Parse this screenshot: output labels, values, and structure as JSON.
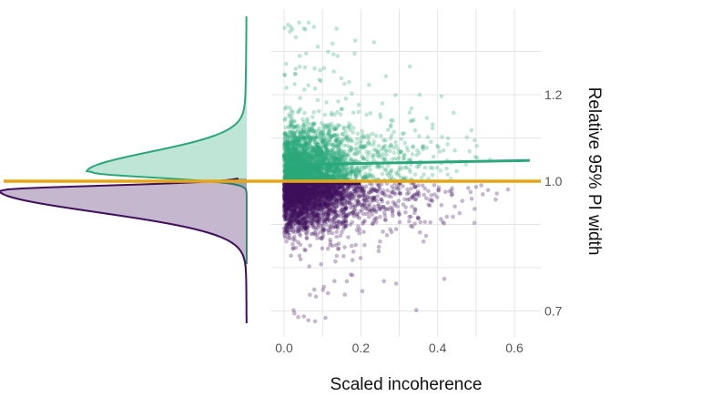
{
  "chart_data": {
    "type": "scatter",
    "title": "",
    "xlabel": "Scaled incoherence",
    "ylabel": "Relative 95% PI width",
    "xlim": [
      -0.02,
      0.66
    ],
    "ylim": [
      0.67,
      1.38
    ],
    "x_ticks": [
      0.0,
      0.2,
      0.4,
      0.6
    ],
    "x_tick_labels": [
      "0.0",
      "0.2",
      "0.4",
      "0.6"
    ],
    "y_ticks": [
      0.7,
      1.0,
      1.2
    ],
    "y_tick_labels": [
      "0.7",
      "1.0",
      "1.2"
    ],
    "reference_line": {
      "y": 1.0,
      "color": "#e6a614"
    },
    "series": [
      {
        "name": "above_reference",
        "color": "#2aa87c",
        "y_range": [
          1.0,
          1.37
        ],
        "x_range": [
          0.0,
          0.63
        ],
        "trend": {
          "x": [
            0.0,
            0.64
          ],
          "y": [
            1.0,
            1.05
          ]
        },
        "density_peak_y": 1.02
      },
      {
        "name": "below_reference",
        "color": "#3f0f5c",
        "y_range": [
          0.66,
          1.0
        ],
        "x_range": [
          0.0,
          0.62
        ],
        "trend": {
          "x": [
            0.0,
            0.2
          ],
          "y": [
            1.0,
            1.0
          ]
        },
        "density_peak_y": 0.995
      }
    ],
    "grid": true,
    "marginal_density": "left"
  }
}
